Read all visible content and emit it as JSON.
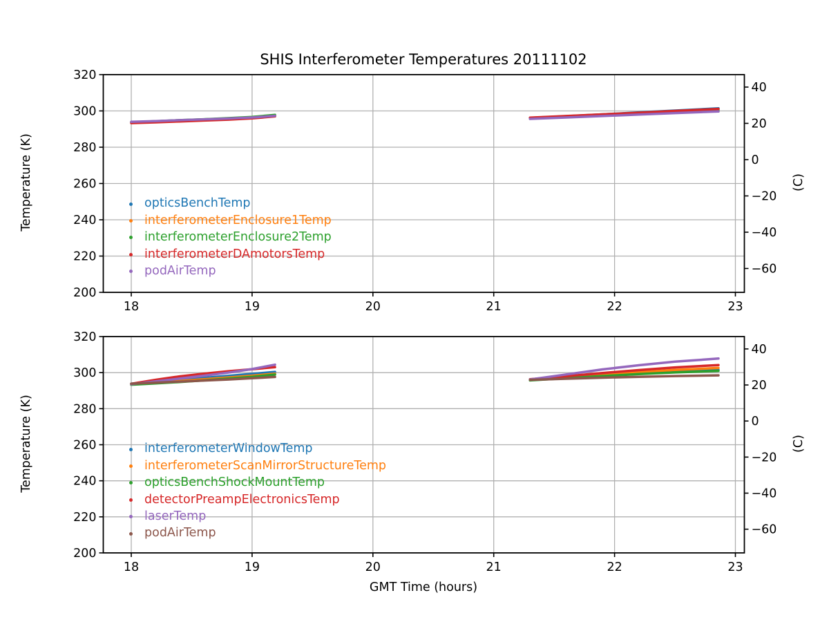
{
  "figure": {
    "background": "#ffffff",
    "text_color": "#000000"
  },
  "chart_data": {
    "type": "line",
    "title": "SHIS Interferometer Temperatures 20111102",
    "xlabel": "GMT Time (hours)",
    "grid": true,
    "grid_color": "#b0b0b0",
    "x_ticks": [
      18,
      19,
      20,
      21,
      22,
      23
    ],
    "x_tick_labels": [
      "18",
      "19",
      "20",
      "21",
      "22",
      "23"
    ],
    "xlim": [
      17.77,
      23.075
    ],
    "legend_position": "lower-left-inside",
    "subplots": [
      {
        "name": "interferometer-temps-group1",
        "ylabel_left": "Temperature (K)",
        "ylabel_right": "(C)",
        "ylim": [
          200,
          320
        ],
        "y_ticks_left": [
          200,
          220,
          240,
          260,
          280,
          300,
          320
        ],
        "y_tick_labels_left": [
          "200",
          "220",
          "240",
          "260",
          "280",
          "300",
          "320"
        ],
        "y_ticks_right_kelvin": [
          313.15,
          293.15,
          273.15,
          253.15,
          233.15,
          213.15
        ],
        "y_tick_labels_right": [
          "40",
          "20",
          "0",
          "−20",
          "−40",
          "−60"
        ],
        "x_segments": [
          [
            18.0,
            18.2,
            18.4,
            18.6,
            18.8,
            19.0,
            19.19
          ],
          [
            21.3,
            21.6,
            21.9,
            22.2,
            22.5,
            22.86
          ]
        ],
        "series": [
          {
            "name": "opticsBenchTemp",
            "color": "#1f77b4",
            "y_segments": [
              [
                293.8,
                294.3,
                294.8,
                295.3,
                295.8,
                296.4,
                297.4
              ],
              [
                296.2,
                297.1,
                298.1,
                299.2,
                300.2,
                301.4
              ]
            ]
          },
          {
            "name": "interferometerEnclosure1Temp",
            "color": "#ff7f0e",
            "y_segments": [
              [
                293.7,
                294.2,
                294.7,
                295.2,
                295.7,
                296.3,
                297.3
              ],
              [
                296.1,
                297.0,
                297.9,
                298.9,
                299.8,
                300.9
              ]
            ]
          },
          {
            "name": "interferometerEnclosure2Temp",
            "color": "#2ca02c",
            "y_segments": [
              [
                293.8,
                294.3,
                294.9,
                295.4,
                296.0,
                296.7,
                297.8
              ],
              [
                296.0,
                296.9,
                297.8,
                298.6,
                299.4,
                300.2
              ]
            ]
          },
          {
            "name": "interferometerDAmotorsTemp",
            "color": "#d62728",
            "y_segments": [
              [
                293.3,
                293.7,
                294.2,
                294.7,
                295.2,
                295.9,
                297.0
              ],
              [
                296.3,
                297.2,
                298.1,
                299.0,
                300.0,
                301.1
              ]
            ]
          },
          {
            "name": "podAirTemp",
            "color": "#9467bd",
            "y_segments": [
              [
                294.0,
                294.4,
                294.9,
                295.3,
                295.8,
                296.4,
                297.3
              ],
              [
                295.6,
                296.4,
                297.2,
                298.0,
                298.8,
                299.7
              ]
            ]
          }
        ]
      },
      {
        "name": "interferometer-temps-group2",
        "ylabel_left": "Temperature (K)",
        "ylabel_right": "(C)",
        "ylim": [
          200,
          320
        ],
        "y_ticks_left": [
          200,
          220,
          240,
          260,
          280,
          300,
          320
        ],
        "y_tick_labels_left": [
          "200",
          "220",
          "240",
          "260",
          "280",
          "300",
          "320"
        ],
        "y_ticks_right_kelvin": [
          313.15,
          293.15,
          273.15,
          253.15,
          233.15,
          213.15
        ],
        "y_tick_labels_right": [
          "40",
          "20",
          "0",
          "−20",
          "−40",
          "−60"
        ],
        "x_segments": [
          [
            18.0,
            18.2,
            18.4,
            18.6,
            18.8,
            19.0,
            19.19
          ],
          [
            21.3,
            21.6,
            21.9,
            22.2,
            22.5,
            22.86
          ]
        ],
        "series": [
          {
            "name": "interferometerWindowTemp",
            "color": "#1f77b4",
            "y_segments": [
              [
                293.8,
                294.9,
                296.0,
                297.1,
                298.2,
                299.3,
                300.4
              ],
              [
                296.1,
                297.4,
                298.7,
                299.8,
                300.7,
                301.5
              ]
            ]
          },
          {
            "name": "interferometerScanMirrorStructureTemp",
            "color": "#ff7f0e",
            "y_segments": [
              [
                293.6,
                294.5,
                295.4,
                296.3,
                297.3,
                298.3,
                299.4
              ],
              [
                295.9,
                297.3,
                298.8,
                300.2,
                301.5,
                302.6
              ]
            ]
          },
          {
            "name": "opticsBenchShockMountTemp",
            "color": "#2ca02c",
            "y_segments": [
              [
                293.3,
                294.0,
                294.8,
                295.7,
                296.7,
                297.7,
                298.9
              ],
              [
                295.7,
                296.9,
                298.1,
                299.2,
                300.1,
                301.0
              ]
            ]
          },
          {
            "name": "detectorPreampElectronicsTemp",
            "color": "#d62728",
            "y_segments": [
              [
                293.8,
                296.0,
                297.9,
                299.4,
                300.7,
                301.9,
                303.0
              ],
              [
                296.3,
                298.0,
                299.8,
                301.4,
                302.9,
                304.2
              ]
            ]
          },
          {
            "name": "laserTemp",
            "color": "#9467bd",
            "y_segments": [
              [
                293.6,
                295.1,
                296.7,
                298.3,
                300.0,
                302.0,
                304.4
              ],
              [
                296.2,
                299.0,
                301.8,
                304.1,
                306.1,
                307.8
              ]
            ]
          },
          {
            "name": "podAirTemp",
            "color": "#8c564b",
            "y_segments": [
              [
                293.9,
                294.4,
                295.0,
                295.6,
                296.2,
                296.9,
                297.6
              ],
              [
                296.0,
                296.6,
                297.2,
                297.7,
                298.1,
                298.5
              ]
            ]
          }
        ]
      }
    ]
  }
}
